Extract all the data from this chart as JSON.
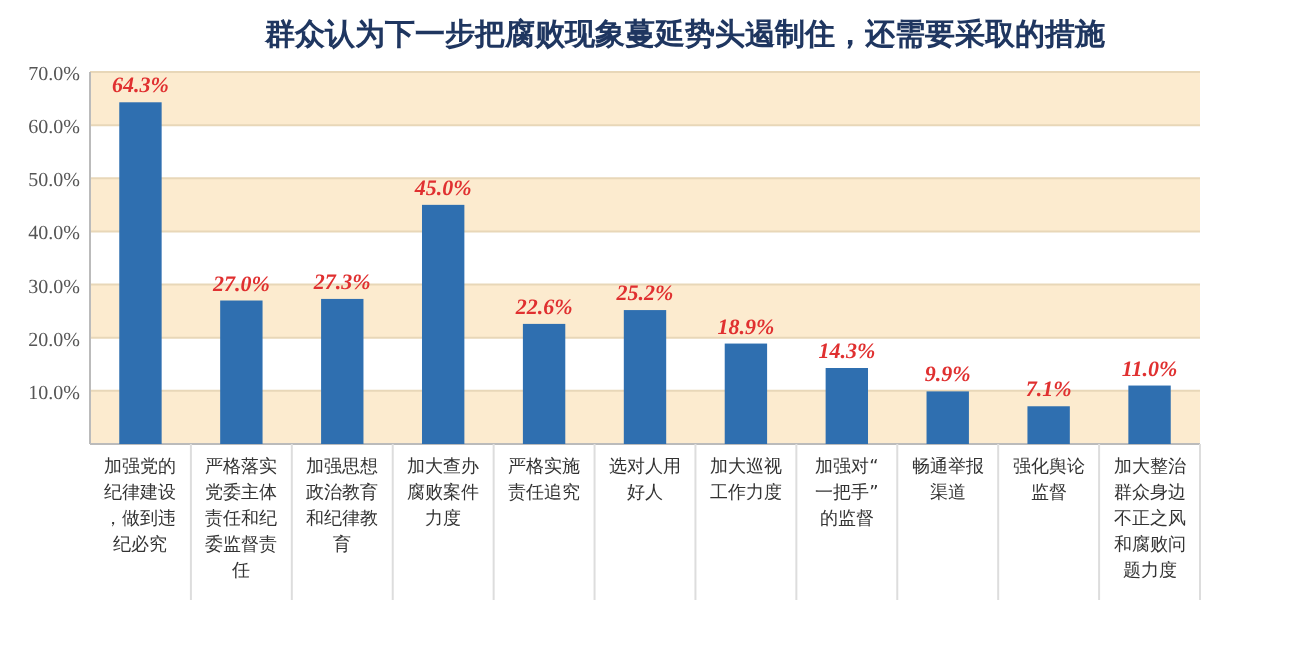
{
  "chart_data": {
    "type": "bar",
    "title": "群众认为下一步把腐败现象蔓延势头遏制住，还需要采取的措施",
    "categories": [
      "加强党的纪律建设，做到违纪必究",
      "严格落实党委主体责任和纪委监督责任",
      "加强思想政治教育和纪律教育",
      "加大查办腐败案件力度",
      "严格实施责任追究",
      "选对人用好人",
      "加大巡视工作力度",
      "加强对“一把手”的监督",
      "畅通举报渠道",
      "强化舆论监督",
      "加大整治群众身边不正之风和腐败问题力度"
    ],
    "series": [
      {
        "color": "#2f6fb0",
        "values": [
          64.3,
          27.0,
          27.3,
          45.0,
          22.6,
          25.2,
          18.9,
          14.3,
          9.9,
          7.1,
          11.0
        ],
        "value_labels": [
          "64.3%",
          "27.0%",
          "27.3%",
          "45.0%",
          "22.6%",
          "25.2%",
          "18.9%",
          "14.3%",
          "9.9%",
          "7.1%",
          "11.0%"
        ]
      }
    ],
    "ylim": [
      0,
      70
    ],
    "yticks": [
      {
        "value": 0,
        "label": null
      },
      {
        "value": 10,
        "label": "10.0%"
      },
      {
        "value": 20,
        "label": "20.0%"
      },
      {
        "value": 30,
        "label": "30.0%"
      },
      {
        "value": 40,
        "label": "40.0%"
      },
      {
        "value": 50,
        "label": "50.0%"
      },
      {
        "value": 60,
        "label": "60.0%"
      },
      {
        "value": 70,
        "label": "70.0%"
      }
    ],
    "bands": [
      {
        "axis": "y",
        "from": 0,
        "to": 10,
        "color": "#fcebcf"
      },
      {
        "axis": "y",
        "from": 20,
        "to": 30,
        "color": "#fcebcf"
      },
      {
        "axis": "y",
        "from": 40,
        "to": 50,
        "color": "#fcebcf"
      },
      {
        "axis": "y",
        "from": 60,
        "to": 70,
        "color": "#fcebcf"
      }
    ],
    "grid": "y"
  }
}
